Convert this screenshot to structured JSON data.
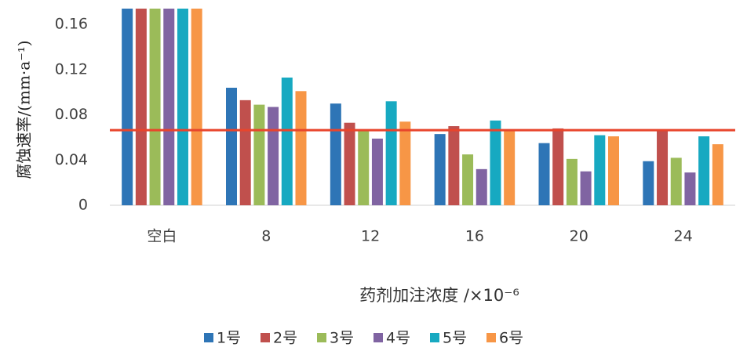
{
  "chart_data": {
    "type": "bar",
    "y_label": "腐蚀速率/(mm·a⁻¹)",
    "x_label": "药剂加注浓度 /×10⁻⁶",
    "categories": [
      "空白",
      "8",
      "12",
      "16",
      "20",
      "24"
    ],
    "series": [
      {
        "name": "1号",
        "color": "#2e75b6",
        "values": [
          0.174,
          0.104,
          0.09,
          0.063,
          0.055,
          0.039
        ]
      },
      {
        "name": "2号",
        "color": "#c0504d",
        "values": [
          0.174,
          0.093,
          0.073,
          0.07,
          0.068,
          0.066
        ]
      },
      {
        "name": "3号",
        "color": "#9bbb59",
        "values": [
          0.174,
          0.089,
          0.066,
          0.045,
          0.041,
          0.042
        ]
      },
      {
        "name": "4号",
        "color": "#8064a2",
        "values": [
          0.174,
          0.087,
          0.059,
          0.032,
          0.03,
          0.029
        ]
      },
      {
        "name": "5号",
        "color": "#17a9c1",
        "values": [
          0.174,
          0.113,
          0.092,
          0.075,
          0.062,
          0.061
        ]
      },
      {
        "name": "6号",
        "color": "#f79646",
        "values": [
          0.174,
          0.101,
          0.074,
          0.067,
          0.061,
          0.054
        ]
      }
    ],
    "reference_line": {
      "value": 0.0665,
      "color": "#e8452c"
    },
    "ylim": [
      0,
      0.174
    ],
    "yticks": [
      0,
      0.04,
      0.08,
      0.12,
      0.16
    ],
    "grid": false
  }
}
